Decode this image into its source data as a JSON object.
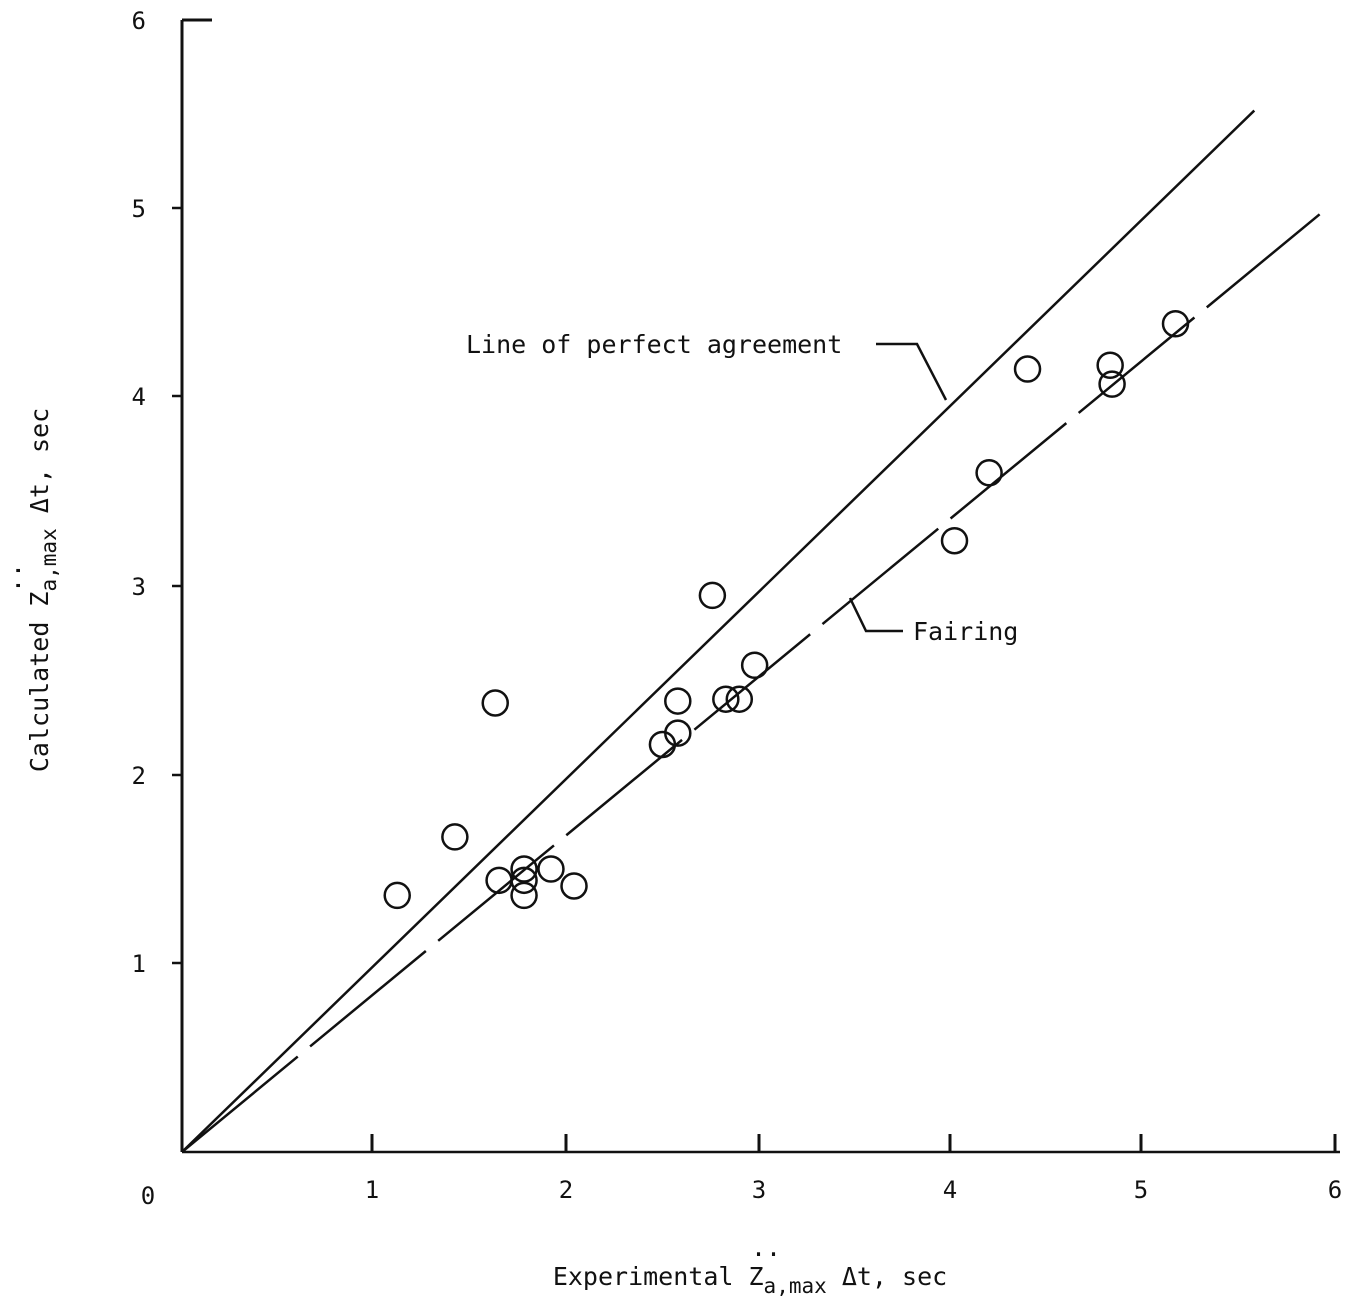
{
  "chart_data": {
    "type": "scatter",
    "xlabel": {
      "prefix": "Experimental ",
      "symbol": "Z",
      "dots": "..",
      "subscript": "a,max",
      "suffix": " Δt, sec"
    },
    "ylabel": {
      "prefix": "Calculated ",
      "symbol": "Z",
      "dots": "..",
      "subscript": "a,max",
      "suffix": " Δt, sec"
    },
    "xlim": [
      0,
      6
    ],
    "ylim": [
      0,
      6
    ],
    "x_ticks": [
      "1",
      "2",
      "3",
      "4",
      "5",
      "6"
    ],
    "y_ticks": [
      "1",
      "2",
      "3",
      "4",
      "5",
      "6"
    ],
    "origin_label": "0",
    "grid": false,
    "points": [
      {
        "x": 1.12,
        "y": 1.36
      },
      {
        "x": 1.42,
        "y": 1.67
      },
      {
        "x": 1.63,
        "y": 2.38
      },
      {
        "x": 1.65,
        "y": 1.44
      },
      {
        "x": 1.78,
        "y": 1.5
      },
      {
        "x": 1.78,
        "y": 1.44
      },
      {
        "x": 1.78,
        "y": 1.36
      },
      {
        "x": 1.92,
        "y": 1.5
      },
      {
        "x": 2.04,
        "y": 1.41
      },
      {
        "x": 2.5,
        "y": 2.16
      },
      {
        "x": 2.58,
        "y": 2.22
      },
      {
        "x": 2.58,
        "y": 2.39
      },
      {
        "x": 2.76,
        "y": 2.95
      },
      {
        "x": 2.83,
        "y": 2.4
      },
      {
        "x": 2.9,
        "y": 2.4
      },
      {
        "x": 2.98,
        "y": 2.58
      },
      {
        "x": 4.02,
        "y": 3.24
      },
      {
        "x": 4.2,
        "y": 3.6
      },
      {
        "x": 4.4,
        "y": 4.15
      },
      {
        "x": 4.83,
        "y": 4.17
      },
      {
        "x": 4.84,
        "y": 4.07
      },
      {
        "x": 5.17,
        "y": 4.39
      }
    ],
    "lines": [
      {
        "name": "Line of perfect agreement",
        "style": "solid",
        "points": [
          [
            0,
            0
          ],
          [
            5.58,
            5.52
          ]
        ]
      },
      {
        "name": "Fairing",
        "style": "dashed",
        "points": [
          [
            0,
            0
          ],
          [
            5.92,
            4.97
          ]
        ]
      }
    ],
    "annotations": [
      {
        "text": "Line of perfect agreement",
        "line": "Line of perfect agreement"
      },
      {
        "text": "Fairing",
        "line": "Fairing"
      }
    ]
  }
}
